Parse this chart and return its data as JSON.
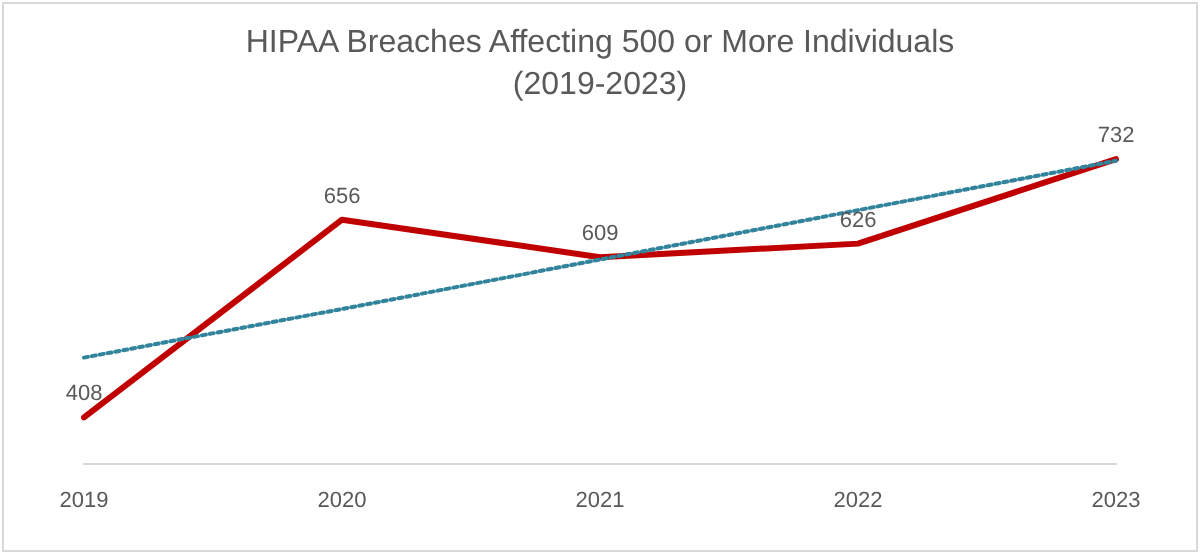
{
  "chart_data": {
    "type": "line",
    "title": "HIPAA Breaches Affecting 500 or More Individuals",
    "subtitle": "(2019-2023)",
    "categories": [
      "2019",
      "2020",
      "2021",
      "2022",
      "2023"
    ],
    "series": [
      {
        "color": "#c00000",
        "values": [
          408,
          656,
          609,
          626,
          732
        ],
        "value_labels": [
          "408",
          "656",
          "609",
          "626",
          "732"
        ]
      },
      {
        "color": "#31849b",
        "line_style": "dotted",
        "values": [
          483,
          544,
          606,
          668,
          730
        ]
      }
    ],
    "grid": false,
    "legend": false,
    "marker": "none",
    "tick_labels": "x"
  }
}
